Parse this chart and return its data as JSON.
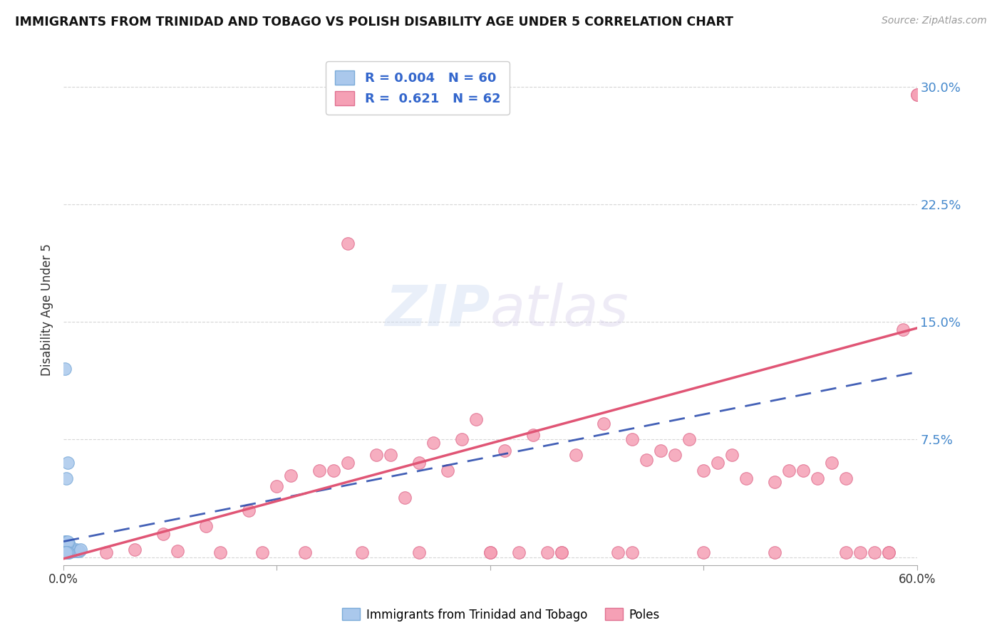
{
  "title": "IMMIGRANTS FROM TRINIDAD AND TOBAGO VS POLISH DISABILITY AGE UNDER 5 CORRELATION CHART",
  "source": "Source: ZipAtlas.com",
  "ylabel": "Disability Age Under 5",
  "xlim": [
    0.0,
    0.6
  ],
  "ylim": [
    -0.005,
    0.32
  ],
  "yticks": [
    0.0,
    0.075,
    0.15,
    0.225,
    0.3
  ],
  "ytick_labels": [
    "",
    "7.5%",
    "15.0%",
    "22.5%",
    "30.0%"
  ],
  "xticks": [
    0.0,
    0.6
  ],
  "xtick_labels": [
    "0.0%",
    "60.0%"
  ],
  "grid_color": "#cccccc",
  "background_color": "#ffffff",
  "blue_color": "#aac8ec",
  "blue_edge": "#7aaad8",
  "pink_color": "#f5a0b5",
  "pink_edge": "#e07090",
  "blue_line_color": "#2244aa",
  "pink_line_color": "#e05575",
  "trinidad_x": [
    0.001,
    0.001,
    0.001,
    0.001,
    0.001,
    0.001,
    0.001,
    0.001,
    0.001,
    0.001,
    0.002,
    0.002,
    0.002,
    0.002,
    0.002,
    0.002,
    0.002,
    0.002,
    0.002,
    0.003,
    0.003,
    0.003,
    0.003,
    0.003,
    0.003,
    0.003,
    0.004,
    0.004,
    0.004,
    0.004,
    0.005,
    0.005,
    0.005,
    0.006,
    0.006,
    0.007,
    0.007,
    0.008,
    0.009,
    0.01,
    0.011,
    0.012,
    0.001,
    0.002,
    0.003,
    0.004,
    0.001,
    0.002,
    0.003,
    0.001,
    0.002,
    0.003,
    0.001,
    0.002,
    0.001,
    0.002,
    0.003,
    0.001,
    0.002
  ],
  "trinidad_y": [
    0.003,
    0.003,
    0.004,
    0.004,
    0.005,
    0.005,
    0.006,
    0.006,
    0.007,
    0.007,
    0.003,
    0.004,
    0.005,
    0.005,
    0.006,
    0.007,
    0.007,
    0.008,
    0.05,
    0.003,
    0.004,
    0.004,
    0.005,
    0.006,
    0.007,
    0.06,
    0.003,
    0.004,
    0.005,
    0.006,
    0.004,
    0.005,
    0.006,
    0.004,
    0.005,
    0.004,
    0.005,
    0.004,
    0.005,
    0.004,
    0.004,
    0.005,
    0.008,
    0.008,
    0.008,
    0.008,
    0.009,
    0.009,
    0.009,
    0.01,
    0.01,
    0.01,
    0.12,
    0.003,
    0.003,
    0.003,
    0.003,
    0.003,
    0.003
  ],
  "poles_x": [
    0.03,
    0.05,
    0.07,
    0.08,
    0.1,
    0.11,
    0.13,
    0.14,
    0.15,
    0.16,
    0.17,
    0.18,
    0.19,
    0.2,
    0.21,
    0.22,
    0.23,
    0.24,
    0.25,
    0.26,
    0.27,
    0.28,
    0.29,
    0.3,
    0.31,
    0.32,
    0.33,
    0.34,
    0.35,
    0.36,
    0.38,
    0.39,
    0.4,
    0.41,
    0.42,
    0.43,
    0.44,
    0.45,
    0.46,
    0.47,
    0.48,
    0.5,
    0.51,
    0.52,
    0.53,
    0.54,
    0.55,
    0.56,
    0.57,
    0.58,
    0.59,
    0.6,
    0.6,
    0.58,
    0.55,
    0.5,
    0.45,
    0.4,
    0.35,
    0.3,
    0.25,
    0.2
  ],
  "poles_y": [
    0.003,
    0.005,
    0.015,
    0.004,
    0.02,
    0.003,
    0.03,
    0.003,
    0.045,
    0.052,
    0.003,
    0.055,
    0.055,
    0.06,
    0.003,
    0.065,
    0.065,
    0.038,
    0.06,
    0.073,
    0.055,
    0.075,
    0.088,
    0.003,
    0.068,
    0.003,
    0.078,
    0.003,
    0.003,
    0.065,
    0.085,
    0.003,
    0.075,
    0.062,
    0.068,
    0.065,
    0.075,
    0.055,
    0.06,
    0.065,
    0.05,
    0.048,
    0.055,
    0.055,
    0.05,
    0.06,
    0.05,
    0.003,
    0.003,
    0.003,
    0.145,
    0.295,
    0.295,
    0.003,
    0.003,
    0.003,
    0.003,
    0.003,
    0.003,
    0.003,
    0.003,
    0.2
  ],
  "trinidad_regression_slope": 0.18,
  "trinidad_regression_intercept": 0.01,
  "poles_regression_slope": 0.245,
  "poles_regression_intercept": -0.001
}
